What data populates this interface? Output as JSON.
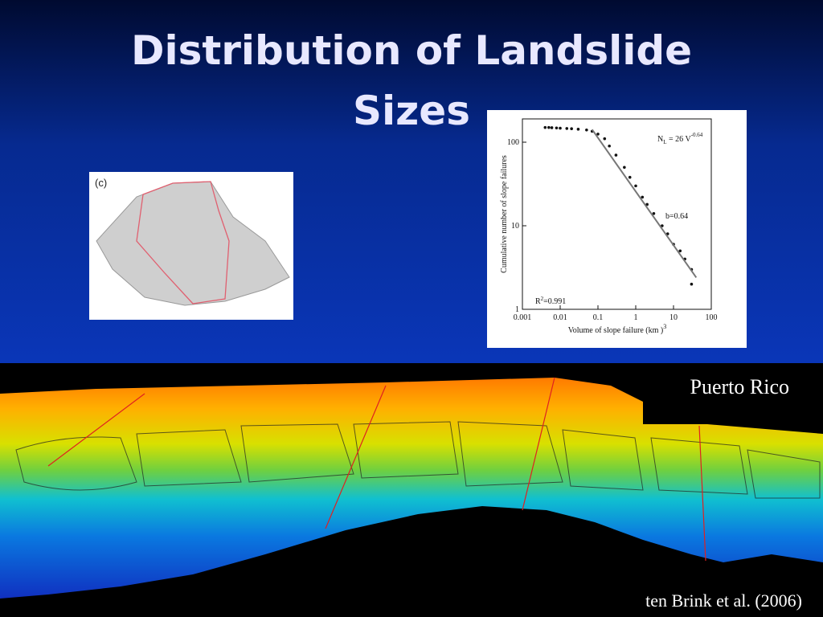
{
  "title": [
    "Distribution of Landslide",
    "Sizes"
  ],
  "figure_c": {
    "label": "(c)"
  },
  "chart_data": {
    "type": "scatter",
    "x_label": "Volume of slope failure (km )",
    "x_label_sup": "3",
    "y_label": "Cumulative number of slope failures",
    "equation": {
      "base": "N",
      "sub": "L",
      "rest": " = 26 V",
      "sup": "-0.64"
    },
    "fit_label": "b=0.64",
    "r2": {
      "base": "R",
      "sup": "2",
      "rest": "=0.991"
    },
    "xscale": "log",
    "yscale": "log",
    "xlim": [
      0.001,
      100
    ],
    "ylim": [
      1,
      190
    ],
    "xticks": [
      0.001,
      0.01,
      0.1,
      1,
      10,
      100
    ],
    "yticks": [
      1,
      10,
      100
    ],
    "series": [
      {
        "color": "#111111",
        "x": [
          0.004,
          0.005,
          0.006,
          0.008,
          0.01,
          0.015,
          0.02,
          0.03,
          0.05,
          0.07,
          0.1,
          0.15,
          0.2,
          0.3,
          0.5,
          0.7,
          1,
          1.5,
          2,
          3,
          5,
          7,
          10,
          15,
          20,
          30,
          30
        ],
        "values": [
          150,
          150,
          149,
          148,
          147,
          146,
          145,
          143,
          140,
          135,
          125,
          110,
          90,
          70,
          50,
          38,
          30,
          22,
          18,
          14,
          10,
          8,
          6,
          5,
          4,
          3,
          2
        ]
      },
      {
        "color": "#777777",
        "line": true,
        "x": [
          0.07,
          40
        ],
        "values": [
          142,
          2.4
        ]
      }
    ]
  },
  "map_label": "Puerto Rico",
  "citation": "ten Brink et al. (2006)"
}
